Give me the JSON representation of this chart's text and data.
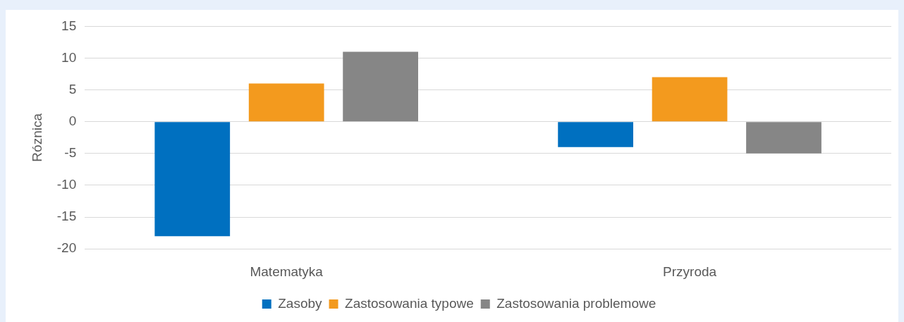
{
  "chart_data": {
    "type": "bar",
    "ylabel": "Róznica",
    "categories": [
      "Matematyka",
      "Przyroda"
    ],
    "series": [
      {
        "name": "Zasoby",
        "color": "#0070c0",
        "values": [
          -18,
          -4
        ]
      },
      {
        "name": "Zastosowania typowe",
        "color": "#f39a1e",
        "values": [
          6,
          7
        ]
      },
      {
        "name": "Zastosowania problemowe",
        "color": "#868686",
        "values": [
          11,
          -5
        ]
      }
    ],
    "ylim": [
      -20,
      15
    ],
    "yticks": [
      -20,
      -15,
      -10,
      -5,
      0,
      5,
      10,
      15
    ],
    "grid": "y",
    "legend": "bottom"
  }
}
